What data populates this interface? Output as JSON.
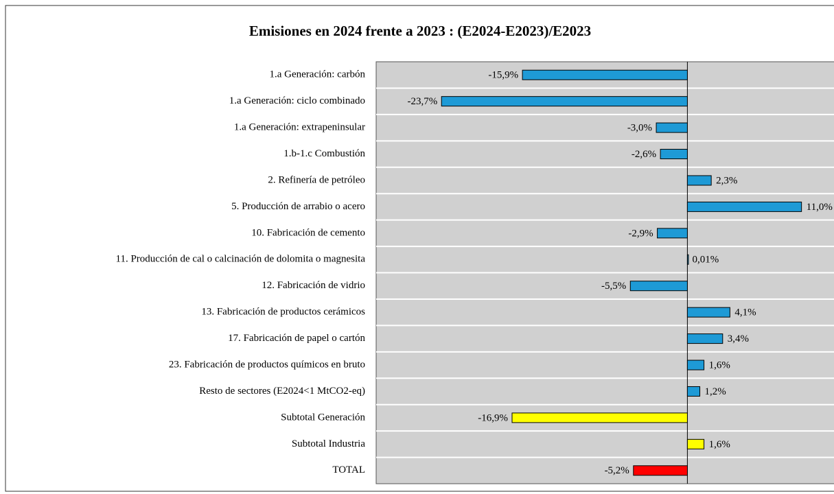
{
  "chart_data": {
    "type": "bar",
    "orientation": "horizontal",
    "title": "Emisiones en 2024 frente a 2023 : (E2024-E2023)/E2023",
    "categories": [
      "1.a Generación: carbón",
      "1.a Generación: ciclo combinado",
      "1.a Generación: extrapeninsular",
      "1.b-1.c Combustión",
      "2. Refinería de petróleo",
      "5. Producción de arrabio o acero",
      "10. Fabricación de cemento",
      "11. Producción de cal o calcinación de dolomita o magnesita",
      "12. Fabricación de vidrio",
      "13. Fabricación de productos cerámicos",
      "17. Fabricación de papel o cartón",
      "23. Fabricación de productos químicos en bruto",
      "Resto de sectores (E2024<1 MtCO2-eq)",
      "Subtotal Generación",
      "Subtotal Industria",
      "TOTAL"
    ],
    "values": [
      -15.9,
      -23.7,
      -3.0,
      -2.6,
      2.3,
      11.0,
      -2.9,
      0.01,
      -5.5,
      4.1,
      3.4,
      1.6,
      1.2,
      -16.9,
      1.6,
      -5.2
    ],
    "value_labels": [
      "-15,9%",
      "-23,7%",
      "-3,0%",
      "-2,6%",
      "2,3%",
      "11,0%",
      "-2,9%",
      "0,01%",
      "-5,5%",
      "4,1%",
      "3,4%",
      "1,6%",
      "1,2%",
      "-16,9%",
      "1,6%",
      "-5,2%"
    ],
    "colors": [
      "#1e9ad6",
      "#1e9ad6",
      "#1e9ad6",
      "#1e9ad6",
      "#1e9ad6",
      "#1e9ad6",
      "#1e9ad6",
      "#1e9ad6",
      "#1e9ad6",
      "#1e9ad6",
      "#1e9ad6",
      "#1e9ad6",
      "#1e9ad6",
      "#ffff00",
      "#ffff00",
      "#ff0000"
    ],
    "xlim": [
      -30,
      14
    ]
  }
}
